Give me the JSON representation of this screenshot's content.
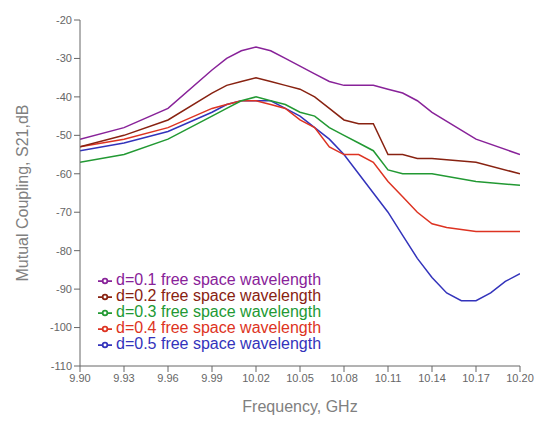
{
  "chart_data": {
    "type": "line",
    "xlabel": "Frequency, GHz",
    "ylabel": "Mutual Coupling, S21,dB",
    "xlim": [
      9.9,
      10.2
    ],
    "ylim": [
      -110,
      -20
    ],
    "xticks": [
      {
        "value": 9.9,
        "label": "9.90"
      },
      9.93,
      9.96,
      9.99,
      10.02,
      10.05,
      10.08,
      10.11,
      10.14,
      10.17,
      {
        "value": 10.2,
        "label": "10.20"
      }
    ],
    "yticks": [
      -110,
      -100,
      -90,
      -80,
      -70,
      -60,
      -50,
      -40,
      -30,
      -20
    ],
    "grid": false,
    "legend": "lower left",
    "series": [
      {
        "name": "d=0.5 free space wavelength",
        "color": "#3333bb",
        "x": [
          9.9,
          9.93,
          9.96,
          9.99,
          10.0,
          10.01,
          10.02,
          10.03,
          10.04,
          10.05,
          10.06,
          10.07,
          10.08,
          10.09,
          10.1,
          10.11,
          10.12,
          10.13,
          10.14,
          10.15,
          10.16,
          10.17,
          10.18,
          10.19,
          10.2
        ],
        "values": [
          -54,
          -52,
          -49,
          -44,
          -42,
          -41,
          -41,
          -41,
          -43,
          -45,
          -48,
          -51,
          -55,
          -60,
          -65,
          -70,
          -76,
          -82,
          -87,
          -91,
          -93,
          -93,
          -91,
          -88,
          -86
        ]
      },
      {
        "name": "d=0.4 free space wavelength",
        "color": "#dd3322",
        "x": [
          9.9,
          9.93,
          9.96,
          9.99,
          10.0,
          10.01,
          10.02,
          10.03,
          10.04,
          10.05,
          10.06,
          10.07,
          10.08,
          10.09,
          10.1,
          10.11,
          10.12,
          10.13,
          10.14,
          10.15,
          10.17,
          10.2
        ],
        "values": [
          -53,
          -51,
          -48,
          -43,
          -42,
          -41,
          -41,
          -42,
          -43,
          -46,
          -48,
          -53,
          -55,
          -55,
          -57,
          -62,
          -66,
          -70,
          -73,
          -74,
          -75,
          -75
        ]
      },
      {
        "name": "d=0.3 free space wavelength",
        "color": "#229933",
        "x": [
          9.9,
          9.93,
          9.96,
          9.99,
          10.0,
          10.01,
          10.02,
          10.03,
          10.04,
          10.05,
          10.06,
          10.07,
          10.08,
          10.09,
          10.1,
          10.11,
          10.12,
          10.13,
          10.14,
          10.17,
          10.2
        ],
        "values": [
          -57,
          -55,
          -51,
          -45,
          -43,
          -41,
          -40,
          -41,
          -42,
          -44,
          -45,
          -48,
          -50,
          -52,
          -54,
          -59,
          -60,
          -60,
          -60,
          -62,
          -63
        ]
      },
      {
        "name": "d=0.2 free space wavelength",
        "color": "#882211",
        "x": [
          9.9,
          9.93,
          9.96,
          9.99,
          10.0,
          10.01,
          10.02,
          10.03,
          10.04,
          10.05,
          10.06,
          10.07,
          10.08,
          10.09,
          10.1,
          10.11,
          10.12,
          10.13,
          10.14,
          10.17,
          10.2
        ],
        "values": [
          -53,
          -50,
          -46,
          -39,
          -37,
          -36,
          -35,
          -36,
          -37,
          -38,
          -40,
          -43,
          -46,
          -47,
          -47,
          -55,
          -55,
          -56,
          -56,
          -57,
          -60
        ]
      },
      {
        "name": "d=0.1 free space wavelength",
        "color": "#882299",
        "x": [
          9.9,
          9.93,
          9.96,
          9.99,
          10.0,
          10.01,
          10.02,
          10.03,
          10.04,
          10.05,
          10.06,
          10.07,
          10.08,
          10.09,
          10.1,
          10.11,
          10.12,
          10.13,
          10.14,
          10.17,
          10.2
        ],
        "values": [
          -51,
          -48,
          -43,
          -33,
          -30,
          -28,
          -27,
          -28,
          -30,
          -32,
          -34,
          -36,
          -37,
          -37,
          -37,
          -38,
          -39,
          -41,
          -44,
          -51,
          -55
        ]
      }
    ]
  }
}
